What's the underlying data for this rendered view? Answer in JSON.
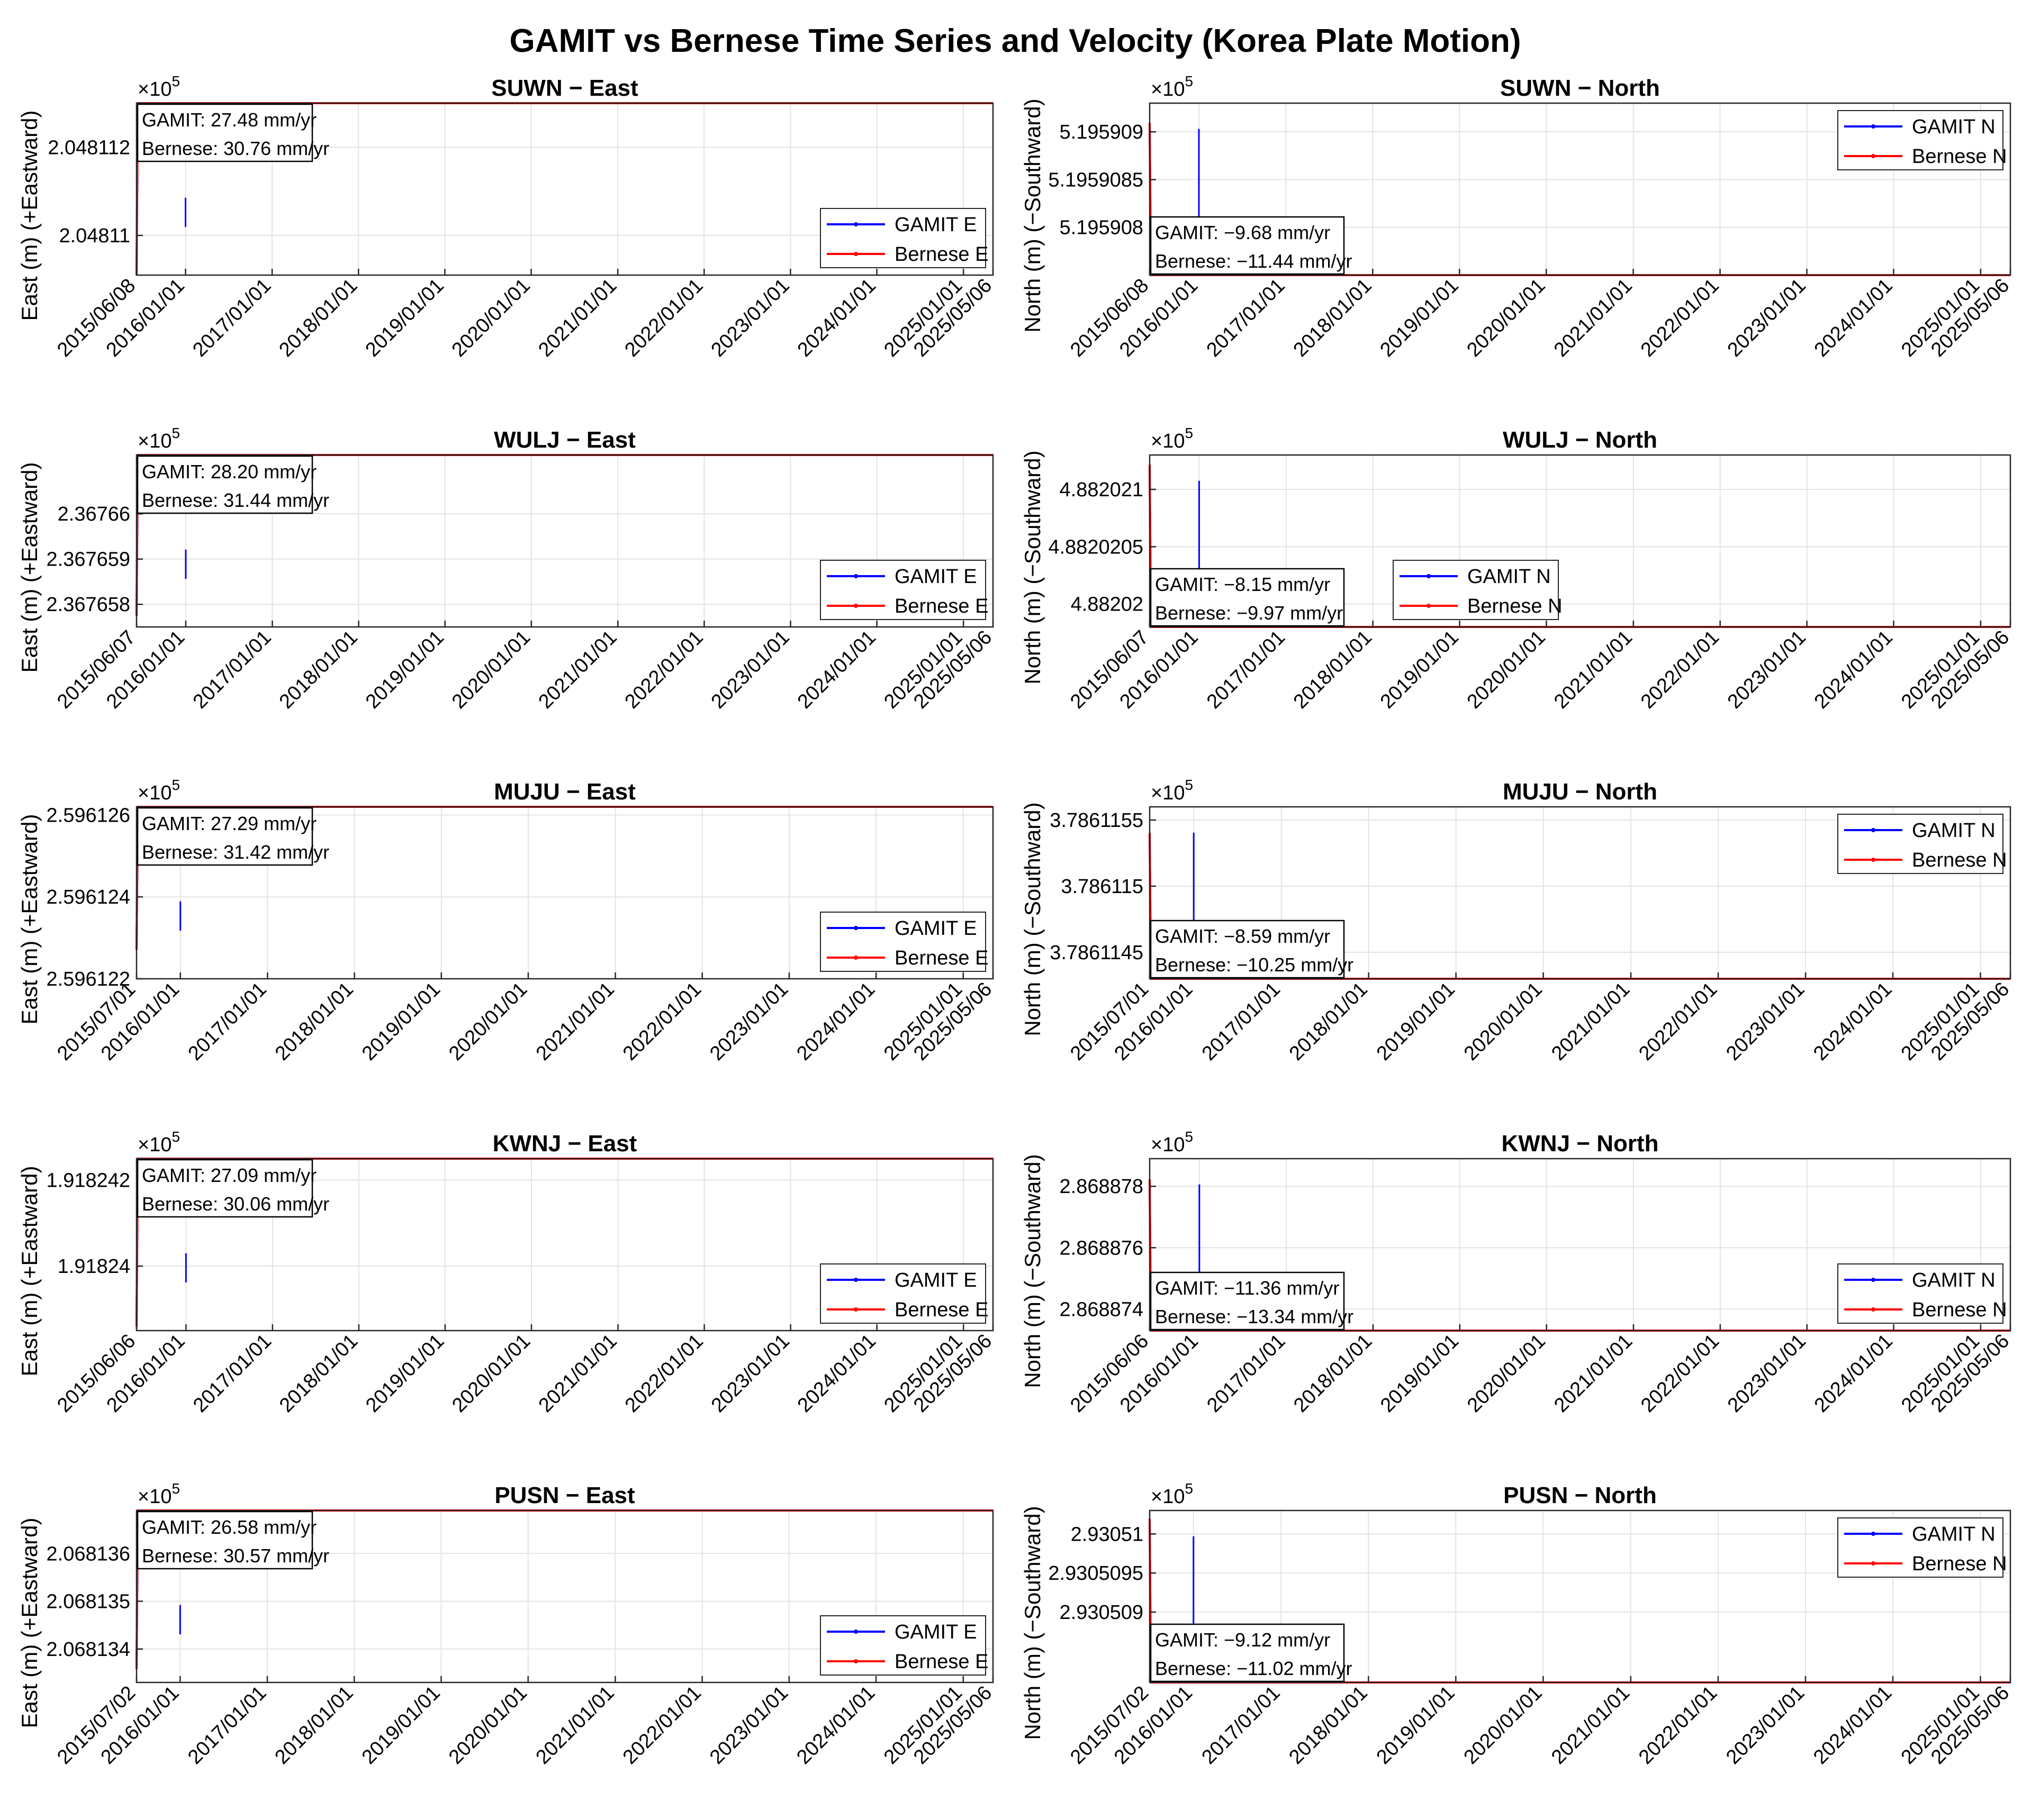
{
  "figure": {
    "title": "GAMIT vs Bernese Time Series and Velocity (Korea Plate Motion)",
    "exponent_base": "×10",
    "exponent_power": "5"
  },
  "colors": {
    "gamit": "#0000ff",
    "bernese": "#ff0000",
    "grid": "#e3e3e3",
    "axis": "#262626"
  },
  "chart_data": [
    {
      "type": "line",
      "station": "SUWN",
      "component": "East",
      "title": "SUWN − East",
      "ylabel": "East (m)  (+Eastward)",
      "ylim": [
        2.0481091,
        2.048113
      ],
      "yticks": [
        2.04811,
        2.048112
      ],
      "ytick_labels": [
        "2.04811",
        "2.048112"
      ],
      "xlim": [
        "2015/06/08",
        "2025/05/06"
      ],
      "xtick_labels": [
        "2015/06/08",
        "2016/01/01",
        "2017/01/01",
        "2018/01/01",
        "2019/01/01",
        "2020/01/01",
        "2021/01/01",
        "2022/01/01",
        "2023/01/01",
        "2024/01/01",
        "2025/01/01",
        "2025/05/06"
      ],
      "velocity_gamit": "GAMIT: 27.48 mm/yr",
      "velocity_bernese": "Bernese: 30.76 mm/yr",
      "legend": [
        "GAMIT E",
        "Bernese E"
      ],
      "legend_loc": "bottom-right",
      "info_loc": "top-left",
      "series": [
        {
          "name": "GAMIT E",
          "start": 2.0481091,
          "velocity_mm_yr": 27.48,
          "noise": 8e-08
        },
        {
          "name": "Bernese E",
          "start": 2.0481091,
          "velocity_mm_yr": 30.76,
          "noise": 7e-08
        }
      ]
    },
    {
      "type": "line",
      "station": "SUWN",
      "component": "North",
      "title": "SUWN − North",
      "ylabel": "North (m)  (−Southward)",
      "ylim": [
        5.1959075,
        5.1959093
      ],
      "yticks": [
        5.195908,
        5.1959085,
        5.195909
      ],
      "ytick_labels": [
        "5.195908",
        "5.1959085",
        "5.195909"
      ],
      "xlim": [
        "2015/06/08",
        "2025/05/06"
      ],
      "xtick_labels": [
        "2015/06/08",
        "2016/01/01",
        "2017/01/01",
        "2018/01/01",
        "2019/01/01",
        "2020/01/01",
        "2021/01/01",
        "2022/01/01",
        "2023/01/01",
        "2024/01/01",
        "2025/01/01",
        "2025/05/06"
      ],
      "velocity_gamit": "GAMIT: −9.68 mm/yr",
      "velocity_bernese": "Bernese: −11.44 mm/yr",
      "legend": [
        "GAMIT N",
        "Bernese N"
      ],
      "legend_loc": "top-right",
      "info_loc": "bottom-left",
      "series": [
        {
          "name": "GAMIT N",
          "start": 5.1959091,
          "velocity_mm_yr": -9.68,
          "noise": 4e-08
        },
        {
          "name": "Bernese N",
          "start": 5.1959091,
          "velocity_mm_yr": -11.44,
          "noise": 3e-08
        }
      ]
    },
    {
      "type": "line",
      "station": "WULJ",
      "component": "East",
      "title": "WULJ − East",
      "ylabel": "East (m)  (+Eastward)",
      "ylim": [
        2.3676575,
        2.3676613
      ],
      "yticks": [
        2.367658,
        2.367659,
        2.36766
      ],
      "ytick_labels": [
        "2.367658",
        "2.367659",
        "2.36766"
      ],
      "xlim": [
        "2015/06/07",
        "2025/05/06"
      ],
      "xtick_labels": [
        "2015/06/07",
        "2016/01/01",
        "2017/01/01",
        "2018/01/01",
        "2019/01/01",
        "2020/01/01",
        "2021/01/01",
        "2022/01/01",
        "2023/01/01",
        "2024/01/01",
        "2025/01/01",
        "2025/05/06"
      ],
      "velocity_gamit": "GAMIT: 28.20 mm/yr",
      "velocity_bernese": "Bernese: 31.44 mm/yr",
      "legend": [
        "GAMIT E",
        "Bernese E"
      ],
      "legend_loc": "bottom-right",
      "info_loc": "top-left",
      "series": [
        {
          "name": "GAMIT E",
          "start": 2.3676577,
          "velocity_mm_yr": 28.2,
          "noise": 8e-08
        },
        {
          "name": "Bernese E",
          "start": 2.3676577,
          "velocity_mm_yr": 31.44,
          "noise": 7e-08
        }
      ]
    },
    {
      "type": "line",
      "station": "WULJ",
      "component": "North",
      "title": "WULJ − North",
      "ylabel": "North (m)  (−Southward)",
      "ylim": [
        4.8820198,
        4.8820213
      ],
      "yticks": [
        4.88202,
        4.8820205,
        4.882021
      ],
      "ytick_labels": [
        "4.88202",
        "4.8820205",
        "4.882021"
      ],
      "xlim": [
        "2015/06/07",
        "2025/05/06"
      ],
      "xtick_labels": [
        "2015/06/07",
        "2016/01/01",
        "2017/01/01",
        "2018/01/01",
        "2019/01/01",
        "2020/01/01",
        "2021/01/01",
        "2022/01/01",
        "2023/01/01",
        "2024/01/01",
        "2025/01/01",
        "2025/05/06"
      ],
      "velocity_gamit": "GAMIT: −8.15 mm/yr",
      "velocity_bernese": "Bernese: −9.97 mm/yr",
      "legend": [
        "GAMIT N",
        "Bernese N"
      ],
      "legend_loc": "bottom-middle",
      "info_loc": "bottom-left",
      "series": [
        {
          "name": "GAMIT N",
          "start": 4.8820212,
          "velocity_mm_yr": -8.15,
          "noise": 4e-08
        },
        {
          "name": "Bernese N",
          "start": 4.8820212,
          "velocity_mm_yr": -9.97,
          "noise": 3e-08
        }
      ]
    },
    {
      "type": "line",
      "station": "MUJU",
      "component": "East",
      "title": "MUJU − East",
      "ylabel": "East (m)  (+Eastward)",
      "ylim": [
        2.596122,
        2.5961262
      ],
      "yticks": [
        2.596122,
        2.596124,
        2.596126
      ],
      "ytick_labels": [
        "2.596122",
        "2.596124",
        "2.596126"
      ],
      "xlim": [
        "2015/07/01",
        "2025/05/06"
      ],
      "xtick_labels": [
        "2015/07/01",
        "2016/01/01",
        "2017/01/01",
        "2018/01/01",
        "2019/01/01",
        "2020/01/01",
        "2021/01/01",
        "2022/01/01",
        "2023/01/01",
        "2024/01/01",
        "2025/01/01",
        "2025/05/06"
      ],
      "velocity_gamit": "GAMIT: 27.29 mm/yr",
      "velocity_bernese": "Bernese: 31.42 mm/yr",
      "legend": [
        "GAMIT E",
        "Bernese E"
      ],
      "legend_loc": "bottom-right",
      "info_loc": "top-left",
      "series": [
        {
          "name": "GAMIT E",
          "start": 2.5961227,
          "velocity_mm_yr": 27.29,
          "noise": 8e-08
        },
        {
          "name": "Bernese E",
          "start": 2.5961227,
          "velocity_mm_yr": 31.42,
          "noise": 7e-08
        }
      ]
    },
    {
      "type": "line",
      "station": "MUJU",
      "component": "North",
      "title": "MUJU − North",
      "ylabel": "North (m)  (−Southward)",
      "ylim": [
        3.7861143,
        3.7861156
      ],
      "yticks": [
        3.7861145,
        3.786115,
        3.7861155
      ],
      "ytick_labels": [
        "3.7861145",
        "3.786115",
        "3.7861155"
      ],
      "xlim": [
        "2015/07/01",
        "2025/05/06"
      ],
      "xtick_labels": [
        "2015/07/01",
        "2016/01/01",
        "2017/01/01",
        "2018/01/01",
        "2019/01/01",
        "2020/01/01",
        "2021/01/01",
        "2022/01/01",
        "2023/01/01",
        "2024/01/01",
        "2025/01/01",
        "2025/05/06"
      ],
      "velocity_gamit": "GAMIT: −8.59 mm/yr",
      "velocity_bernese": "Bernese: −10.25 mm/yr",
      "legend": [
        "GAMIT N",
        "Bernese N"
      ],
      "legend_loc": "top-right",
      "info_loc": "bottom-left",
      "series": [
        {
          "name": "GAMIT N",
          "start": 3.7861154,
          "velocity_mm_yr": -8.59,
          "noise": 4e-08
        },
        {
          "name": "Bernese N",
          "start": 3.7861154,
          "velocity_mm_yr": -10.25,
          "noise": 3e-08
        }
      ]
    },
    {
      "type": "line",
      "station": "KWNJ",
      "component": "East",
      "title": "KWNJ − East",
      "ylabel": "East (m)  (+Eastward)",
      "ylim": [
        1.9182385,
        1.9182425
      ],
      "yticks": [
        1.91824,
        1.918242
      ],
      "ytick_labels": [
        "1.91824",
        "1.918242"
      ],
      "xlim": [
        "2015/06/06",
        "2025/05/06"
      ],
      "xtick_labels": [
        "2015/06/06",
        "2016/01/01",
        "2017/01/01",
        "2018/01/01",
        "2019/01/01",
        "2020/01/01",
        "2021/01/01",
        "2022/01/01",
        "2023/01/01",
        "2024/01/01",
        "2025/01/01",
        "2025/05/06"
      ],
      "velocity_gamit": "GAMIT: 27.09 mm/yr",
      "velocity_bernese": "Bernese: 30.06 mm/yr",
      "legend": [
        "GAMIT E",
        "Bernese E"
      ],
      "legend_loc": "bottom-right",
      "info_loc": "top-left",
      "series": [
        {
          "name": "GAMIT E",
          "start": 1.9182386,
          "velocity_mm_yr": 27.09,
          "noise": 8e-08
        },
        {
          "name": "Bernese E",
          "start": 1.9182386,
          "velocity_mm_yr": 30.06,
          "noise": 7e-08
        }
      ]
    },
    {
      "type": "line",
      "station": "KWNJ",
      "component": "North",
      "title": "KWNJ − North",
      "ylabel": "North (m)  (−Southward)",
      "ylim": [
        2.8688733,
        2.8688789
      ],
      "yticks": [
        2.868874,
        2.868876,
        2.868878
      ],
      "ytick_labels": [
        "2.868874",
        "2.868876",
        "2.868878"
      ],
      "xlim": [
        "2015/06/06",
        "2025/05/06"
      ],
      "xtick_labels": [
        "2015/06/06",
        "2016/01/01",
        "2017/01/01",
        "2018/01/01",
        "2019/01/01",
        "2020/01/01",
        "2021/01/01",
        "2022/01/01",
        "2023/01/01",
        "2024/01/01",
        "2025/01/01",
        "2025/05/06"
      ],
      "velocity_gamit": "GAMIT: −11.36 mm/yr",
      "velocity_bernese": "Bernese: −13.34 mm/yr",
      "legend": [
        "GAMIT N",
        "Bernese N"
      ],
      "legend_loc": "bottom-right",
      "info_loc": "bottom-left",
      "series": [
        {
          "name": "GAMIT N",
          "start": 2.8688782,
          "velocity_mm_yr": -11.36,
          "noise": 4e-08
        },
        {
          "name": "Bernese N",
          "start": 2.8688782,
          "velocity_mm_yr": -13.34,
          "noise": 3e-08
        }
      ]
    },
    {
      "type": "line",
      "station": "PUSN",
      "component": "East",
      "title": "PUSN − East",
      "ylabel": "East (m)  (+Eastward)",
      "ylim": [
        2.0681333,
        2.0681369
      ],
      "yticks": [
        2.068134,
        2.068135,
        2.068136
      ],
      "ytick_labels": [
        "2.068134",
        "2.068135",
        "2.068136"
      ],
      "xlim": [
        "2015/07/02",
        "2025/05/06"
      ],
      "xtick_labels": [
        "2015/07/02",
        "2016/01/01",
        "2017/01/01",
        "2018/01/01",
        "2019/01/01",
        "2020/01/01",
        "2021/01/01",
        "2022/01/01",
        "2023/01/01",
        "2024/01/01",
        "2025/01/01",
        "2025/05/06"
      ],
      "velocity_gamit": "GAMIT: 26.58 mm/yr",
      "velocity_bernese": "Bernese: 30.57 mm/yr",
      "legend": [
        "GAMIT E",
        "Bernese E"
      ],
      "legend_loc": "bottom-right",
      "info_loc": "top-left",
      "series": [
        {
          "name": "GAMIT E",
          "start": 2.0681336,
          "velocity_mm_yr": 26.58,
          "noise": 8e-08
        },
        {
          "name": "Bernese E",
          "start": 2.0681336,
          "velocity_mm_yr": 30.57,
          "noise": 7e-08
        }
      ]
    },
    {
      "type": "line",
      "station": "PUSN",
      "component": "North",
      "title": "PUSN − North",
      "ylabel": "North (m)  (−Southward)",
      "ylim": [
        2.9305081,
        2.9305103
      ],
      "yticks": [
        2.930509,
        2.9305095,
        2.93051
      ],
      "ytick_labels": [
        "2.930509",
        "2.9305095",
        "2.93051"
      ],
      "xlim": [
        "2015/07/02",
        "2025/05/06"
      ],
      "xtick_labels": [
        "2015/07/02",
        "2016/01/01",
        "2017/01/01",
        "2018/01/01",
        "2019/01/01",
        "2020/01/01",
        "2021/01/01",
        "2022/01/01",
        "2023/01/01",
        "2024/01/01",
        "2025/01/01",
        "2025/05/06"
      ],
      "velocity_gamit": "GAMIT: −9.12 mm/yr",
      "velocity_bernese": "Bernese: −11.02 mm/yr",
      "legend": [
        "GAMIT N",
        "Bernese N"
      ],
      "legend_loc": "top-right",
      "info_loc": "bottom-left",
      "series": [
        {
          "name": "GAMIT N",
          "start": 2.9305102,
          "velocity_mm_yr": -9.12,
          "noise": 4e-08
        },
        {
          "name": "Bernese N",
          "start": 2.9305102,
          "velocity_mm_yr": -11.02,
          "noise": 3e-08
        }
      ]
    }
  ]
}
